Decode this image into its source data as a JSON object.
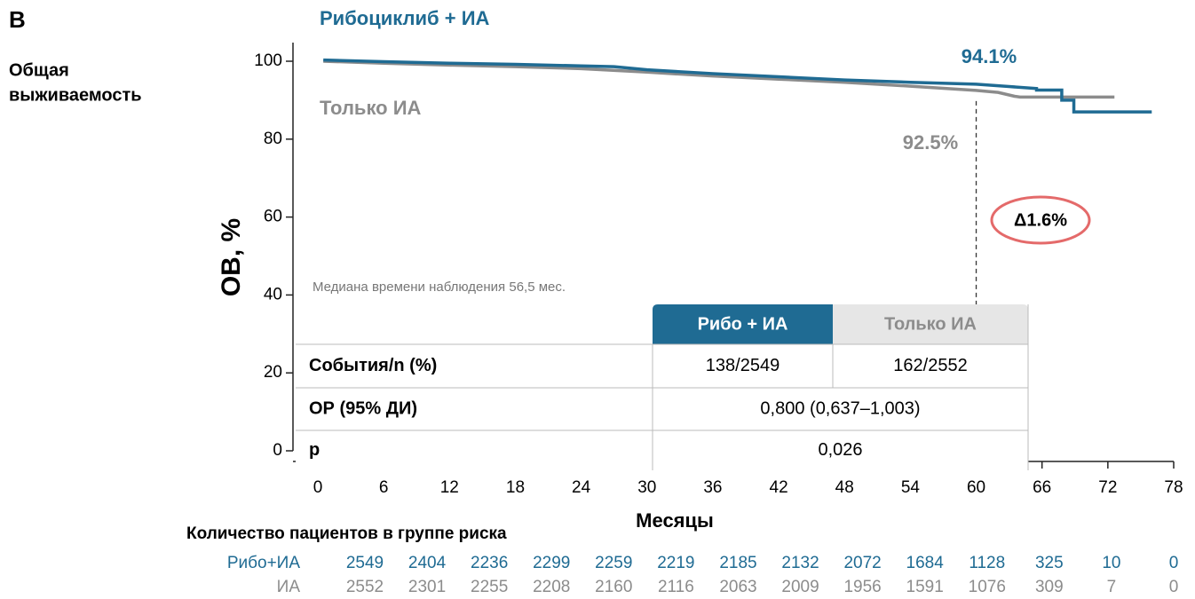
{
  "chart_data": {
    "type": "line",
    "panel_label": "B",
    "side_title": [
      "Общая",
      "выживаемость"
    ],
    "ylabel": "ОВ, %",
    "xlabel": "Месяцы",
    "xlim": [
      0,
      78
    ],
    "xticks": [
      0,
      6,
      12,
      18,
      24,
      30,
      36,
      42,
      48,
      54,
      60,
      66,
      72,
      78
    ],
    "ylim": [
      0,
      100
    ],
    "yticks": [
      0,
      20,
      40,
      60,
      80,
      100
    ],
    "marker_x": 60,
    "series": [
      {
        "name": "Рибоциклиб + ИА",
        "color": "#1f6b93",
        "x": [
          0.5,
          6,
          12,
          18,
          24,
          27,
          30,
          36,
          42,
          48,
          54,
          60,
          63,
          65.5,
          65.5,
          67.8,
          67.8,
          68.9,
          68.9,
          76
        ],
        "values": [
          100.3,
          99.9,
          99.5,
          99.2,
          98.8,
          98.6,
          97.8,
          96.8,
          96.0,
          95.2,
          94.6,
          94.1,
          93.5,
          93.0,
          92.6,
          92.6,
          90.0,
          90.0,
          87.0,
          87.0
        ]
      },
      {
        "name": "Только ИА",
        "color": "#8c8c8c",
        "x": [
          0.5,
          6,
          12,
          18,
          24,
          30,
          36,
          42,
          48,
          54,
          60,
          62,
          63.5,
          64,
          72.6
        ],
        "values": [
          100.0,
          99.5,
          99.0,
          98.6,
          98.1,
          97.2,
          96.2,
          95.4,
          94.6,
          93.6,
          92.5,
          92.0,
          91.0,
          90.8,
          90.8
        ]
      }
    ],
    "annotations": {
      "blue_value": "94.1%",
      "gray_value": "92.5%",
      "delta": "Δ1.6%",
      "median": "Медиана времени наблюдения 56,5 мес."
    },
    "table": {
      "header": [
        "Рибо + ИА",
        "Только ИА"
      ],
      "rows": [
        [
          "События/n (%)",
          "138/2549",
          "162/2552"
        ],
        [
          "ОР (95% ДИ)",
          "0,800 (0,637–1,003)"
        ],
        [
          "p",
          "0,026"
        ]
      ]
    },
    "at_risk": {
      "title": "Количество пациентов в группе риска",
      "rows": [
        {
          "name": "Рибо+ИА",
          "color": "#1f6b93",
          "values": [
            2549,
            2404,
            2236,
            2299,
            2259,
            2219,
            2185,
            2132,
            2072,
            1684,
            1128,
            325,
            10,
            0
          ]
        },
        {
          "name": "ИА",
          "color": "#8c8c8c",
          "values": [
            2552,
            2301,
            2255,
            2208,
            2160,
            2116,
            2063,
            2009,
            1956,
            1591,
            1076,
            309,
            7,
            0
          ]
        }
      ]
    }
  }
}
